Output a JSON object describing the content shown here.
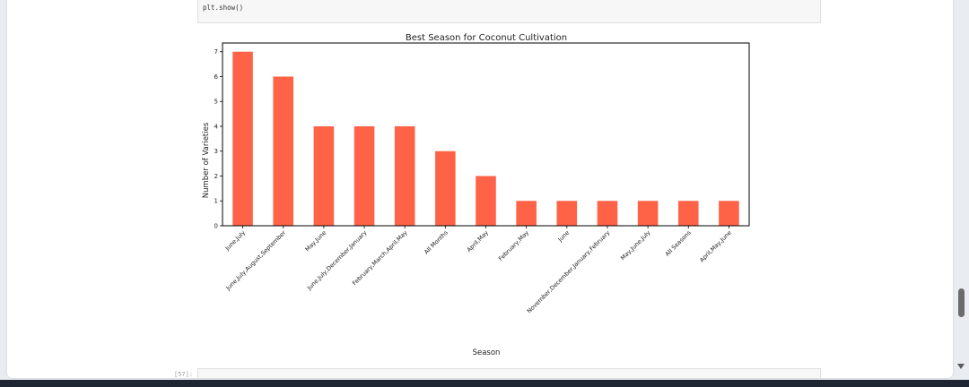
{
  "notebook": {
    "code_line": "plt.show()",
    "next_prompt": "[57]:"
  },
  "colors": {
    "bar": "#ff6347",
    "axes": "#000000",
    "text": "#222222"
  },
  "chart_data": {
    "type": "bar",
    "title": "Best Season for Coconut Cultivation",
    "xlabel": "Season",
    "ylabel": "Number of Varieties",
    "ylim": [
      0,
      7.35
    ],
    "yticks": [
      0,
      1,
      2,
      3,
      4,
      5,
      6,
      7
    ],
    "grid": false,
    "categories": [
      "June,July",
      "June,July,August,September",
      "May,June",
      "June,July,December,January",
      "February,March,April,May",
      "All Months",
      "April,May",
      "February,May",
      "June",
      "November,December,January,February",
      "May,June,July",
      "All Seasons",
      "April,May,June"
    ],
    "values": [
      7,
      6,
      4,
      4,
      4,
      3,
      2,
      1,
      1,
      1,
      1,
      1,
      1
    ]
  }
}
